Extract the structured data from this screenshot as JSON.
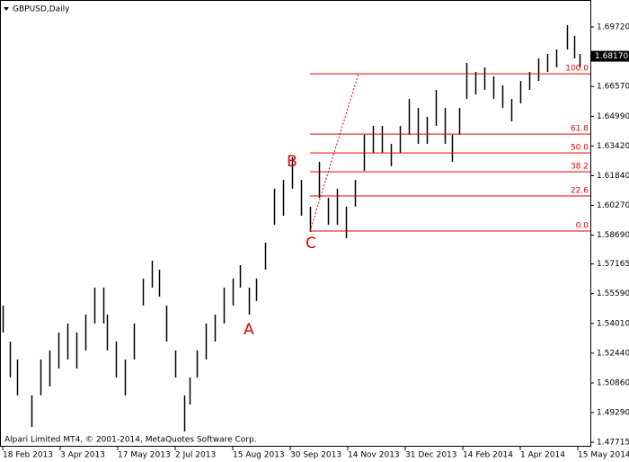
{
  "chart_data": {
    "type": "ohlc",
    "title": "GBPUSD,Daily",
    "footer": "Alpari Limited MT4, © 2001-2014, MetaQuotes Software Corp.",
    "color": "#000000",
    "x": [
      0,
      4,
      8,
      16,
      21,
      26,
      31,
      36,
      41,
      46,
      51,
      56,
      58,
      63,
      68,
      73,
      78,
      83,
      87,
      91,
      96,
      101,
      104,
      108,
      113,
      118,
      123,
      128,
      132,
      137,
      141,
      146,
      151,
      156,
      161,
      166,
      171,
      176,
      181,
      186,
      191,
      196,
      201,
      206,
      211,
      216,
      221,
      226,
      231,
      236,
      241,
      246,
      250,
      254,
      258,
      263,
      268,
      273,
      278,
      283,
      288,
      293,
      298,
      303,
      308,
      314,
      318,
      321
    ],
    "series": [
      {
        "name": "High",
        "values": [
          1.5496,
          1.5305,
          1.521,
          1.502,
          1.521,
          1.5258,
          1.5353,
          1.5401,
          1.5353,
          1.5448,
          1.5591,
          1.5591,
          1.5448,
          1.5305,
          1.521,
          1.5401,
          1.5639,
          1.5734,
          1.5686,
          1.5496,
          1.5258,
          1.502,
          1.5115,
          1.5258,
          1.5401,
          1.5448,
          1.5591,
          1.5639,
          1.571,
          1.5591,
          1.5639,
          1.5829,
          1.6115,
          1.6162,
          1.6282,
          1.6162,
          1.602,
          1.6258,
          1.6067,
          1.6115,
          1.602,
          1.6162,
          1.6401,
          1.6448,
          1.6448,
          1.6353,
          1.6448,
          1.6591,
          1.6543,
          1.6496,
          1.6639,
          1.6543,
          1.6401,
          1.6543,
          1.6782,
          1.6734,
          1.6758,
          1.671,
          1.6663,
          1.6591,
          1.6686,
          1.6734,
          1.6806,
          1.6829,
          1.6853,
          1.6982,
          1.6925,
          1.6829
        ]
      },
      {
        "name": "Low",
        "values": [
          1.5353,
          1.5115,
          1.502,
          1.4853,
          1.502,
          1.5067,
          1.5162,
          1.521,
          1.5162,
          1.5258,
          1.5401,
          1.5401,
          1.5258,
          1.5115,
          1.502,
          1.521,
          1.5496,
          1.5591,
          1.5543,
          1.5305,
          1.5115,
          1.4829,
          1.4972,
          1.5115,
          1.521,
          1.5305,
          1.5401,
          1.5496,
          1.5591,
          1.5448,
          1.552,
          1.5686,
          1.5924,
          1.5972,
          1.6115,
          1.5972,
          1.5886,
          1.6067,
          1.5924,
          1.5924,
          1.5853,
          1.602,
          1.621,
          1.6305,
          1.6305,
          1.6234,
          1.6305,
          1.6401,
          1.6353,
          1.6353,
          1.6448,
          1.6353,
          1.6258,
          1.6401,
          1.6591,
          1.6615,
          1.6639,
          1.6591,
          1.6543,
          1.6472,
          1.6567,
          1.6639,
          1.6686,
          1.6734,
          1.6758,
          1.6853,
          1.6806,
          1.6758
        ]
      }
    ],
    "xlim": [
      -1,
      327
    ],
    "xticks": [
      {
        "value": 0,
        "label": "18 Feb 2013"
      },
      {
        "value": 32,
        "label": "3 Apr 2013"
      },
      {
        "value": 64,
        "label": "17 May 2013"
      },
      {
        "value": 96,
        "label": "2 Jul 2013"
      },
      {
        "value": 128,
        "label": "15 Aug 2013"
      },
      {
        "value": 160,
        "label": "30 Sep 2013"
      },
      {
        "value": 192,
        "label": "14 Nov 2013"
      },
      {
        "value": 224,
        "label": "31 Dec 2013"
      },
      {
        "value": 256,
        "label": "14 Feb 2014"
      },
      {
        "value": 288,
        "label": "1 Apr 2014"
      },
      {
        "value": 320,
        "label": "15 May 2014"
      }
    ],
    "ylim": [
      1.4748,
      1.7115
    ],
    "yticks": [
      {
        "value": 1.6972,
        "label": "1.69720"
      },
      {
        "value": 1.6657,
        "label": "1.66570"
      },
      {
        "value": 1.6499,
        "label": "1.64990"
      },
      {
        "value": 1.6342,
        "label": "1.63420"
      },
      {
        "value": 1.6184,
        "label": "1.61840"
      },
      {
        "value": 1.6027,
        "label": "1.60270"
      },
      {
        "value": 1.5869,
        "label": "1.58690"
      },
      1.57165,
      {
        "value": 1.5559,
        "label": "1.55590"
      },
      {
        "value": 1.5401,
        "label": "1.54010"
      },
      {
        "value": 1.5244,
        "label": "1.52440"
      },
      {
        "value": 1.5086,
        "label": "1.50860"
      },
      {
        "value": 1.4929,
        "label": "1.49290"
      },
      1.47715
    ],
    "current_price": {
      "value": 1.6817,
      "label": "1.68170"
    },
    "fibo": {
      "color": "#e00000",
      "start_x": 171,
      "levels": [
        {
          "label": "100.0",
          "price": 1.6724
        },
        {
          "label": "61.8",
          "price": 1.6405
        },
        {
          "label": "50.0",
          "price": 1.6305
        },
        {
          "label": "38.2",
          "price": 1.6205
        },
        {
          "label": "22.6",
          "price": 1.6077
        },
        {
          "label": "0.0",
          "price": 1.5891
        }
      ],
      "trend": {
        "x": [
          171,
          198
        ],
        "y": [
          1.5891,
          1.6724
        ]
      }
    },
    "annotations": [
      {
        "text": "A",
        "x": 137,
        "y": 1.5367
      },
      {
        "text": "B",
        "x": 161,
        "y": 1.6258
      },
      {
        "text": "C",
        "x": 171.5,
        "y": 1.5824
      }
    ]
  }
}
